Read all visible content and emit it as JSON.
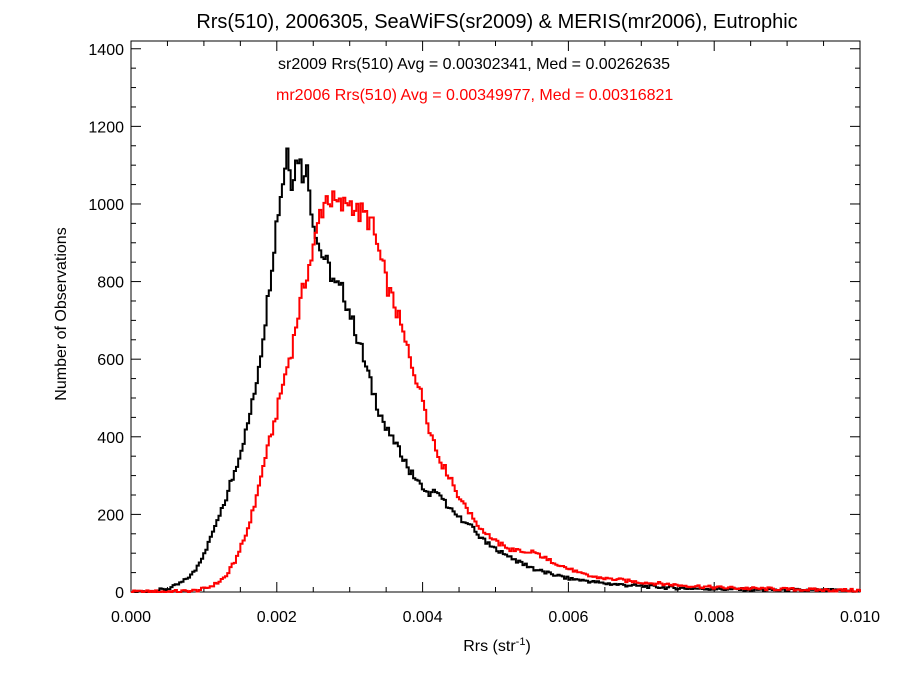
{
  "chart_data": {
    "type": "histogram",
    "title": "Rrs(510), 2006305, SeaWiFS(sr2009) & MERIS(mr2006), Eutrophic",
    "xlabel": "Rrs (str",
    "xlabel_sup": "-1",
    "xlabel_close": ")",
    "ylabel": "Number of Observations",
    "xlim": [
      0.0,
      0.01
    ],
    "ylim": [
      0,
      1420
    ],
    "xticks": [
      0.0,
      0.002,
      0.004,
      0.006,
      0.008,
      0.01
    ],
    "xtick_labels": [
      "0.000",
      "0.002",
      "0.004",
      "0.006",
      "0.008",
      "0.010"
    ],
    "yticks": [
      0,
      200,
      400,
      600,
      800,
      1000,
      1200,
      1400
    ],
    "ytick_labels": [
      "0",
      "200",
      "400",
      "600",
      "800",
      "1000",
      "1200",
      "1400"
    ],
    "grid": false,
    "annotations": [
      {
        "text": "sr2009 Rrs(510) Avg = 0.00302341, Med = 0.00262635",
        "color": "#000000"
      },
      {
        "text": "mr2006 Rrs(510) Avg = 0.00349977, Med = 0.00316821",
        "color": "#ff0000"
      }
    ],
    "series": [
      {
        "color": "#000000",
        "points": [
          [
            0.0,
            0
          ],
          [
            0.0003,
            2
          ],
          [
            0.0005,
            8
          ],
          [
            0.0006,
            15
          ],
          [
            0.0007,
            25
          ],
          [
            0.0008,
            40
          ],
          [
            0.0009,
            60
          ],
          [
            0.001,
            100
          ],
          [
            0.0011,
            140
          ],
          [
            0.0012,
            190
          ],
          [
            0.0013,
            240
          ],
          [
            0.0014,
            300
          ],
          [
            0.0015,
            360
          ],
          [
            0.0016,
            430
          ],
          [
            0.0017,
            520
          ],
          [
            0.0018,
            640
          ],
          [
            0.0019,
            790
          ],
          [
            0.002,
            960
          ],
          [
            0.0021,
            1080
          ],
          [
            0.00215,
            1150
          ],
          [
            0.0022,
            1060
          ],
          [
            0.0023,
            1130
          ],
          [
            0.00235,
            1070
          ],
          [
            0.0024,
            1110
          ],
          [
            0.0025,
            960
          ],
          [
            0.0026,
            880
          ],
          [
            0.0027,
            840
          ],
          [
            0.0028,
            790
          ],
          [
            0.0029,
            780
          ],
          [
            0.003,
            720
          ],
          [
            0.0031,
            660
          ],
          [
            0.0032,
            600
          ],
          [
            0.0033,
            530
          ],
          [
            0.0034,
            470
          ],
          [
            0.0035,
            420
          ],
          [
            0.0036,
            390
          ],
          [
            0.0037,
            360
          ],
          [
            0.0038,
            320
          ],
          [
            0.0039,
            290
          ],
          [
            0.004,
            270
          ],
          [
            0.0041,
            250
          ],
          [
            0.0042,
            260
          ],
          [
            0.0043,
            230
          ],
          [
            0.0044,
            210
          ],
          [
            0.0045,
            190
          ],
          [
            0.0046,
            180
          ],
          [
            0.0047,
            160
          ],
          [
            0.0048,
            140
          ],
          [
            0.005,
            110
          ],
          [
            0.0052,
            90
          ],
          [
            0.0054,
            70
          ],
          [
            0.0056,
            55
          ],
          [
            0.0058,
            45
          ],
          [
            0.006,
            35
          ],
          [
            0.0065,
            22
          ],
          [
            0.007,
            15
          ],
          [
            0.0075,
            10
          ],
          [
            0.008,
            8
          ],
          [
            0.0085,
            6
          ],
          [
            0.009,
            5
          ],
          [
            0.0095,
            4
          ],
          [
            0.01,
            3
          ]
        ]
      },
      {
        "color": "#ff0000",
        "points": [
          [
            0.0,
            0
          ],
          [
            0.0008,
            2
          ],
          [
            0.0009,
            4
          ],
          [
            0.001,
            8
          ],
          [
            0.0011,
            15
          ],
          [
            0.0012,
            25
          ],
          [
            0.0013,
            40
          ],
          [
            0.0014,
            70
          ],
          [
            0.0015,
            110
          ],
          [
            0.0016,
            160
          ],
          [
            0.0017,
            230
          ],
          [
            0.0018,
            310
          ],
          [
            0.0019,
            390
          ],
          [
            0.002,
            460
          ],
          [
            0.0021,
            550
          ],
          [
            0.0022,
            620
          ],
          [
            0.0023,
            720
          ],
          [
            0.0024,
            810
          ],
          [
            0.0025,
            880
          ],
          [
            0.0026,
            980
          ],
          [
            0.0027,
            1020
          ],
          [
            0.0028,
            1000
          ],
          [
            0.0029,
            990
          ],
          [
            0.003,
            1010
          ],
          [
            0.0031,
            980
          ],
          [
            0.0032,
            970
          ],
          [
            0.0033,
            950
          ],
          [
            0.0034,
            880
          ],
          [
            0.0035,
            800
          ],
          [
            0.0036,
            750
          ],
          [
            0.0037,
            690
          ],
          [
            0.0038,
            620
          ],
          [
            0.0039,
            560
          ],
          [
            0.004,
            500
          ],
          [
            0.0041,
            420
          ],
          [
            0.0042,
            360
          ],
          [
            0.0043,
            320
          ],
          [
            0.0044,
            290
          ],
          [
            0.0045,
            240
          ],
          [
            0.0046,
            220
          ],
          [
            0.0047,
            190
          ],
          [
            0.0048,
            160
          ],
          [
            0.0049,
            150
          ],
          [
            0.005,
            130
          ],
          [
            0.0052,
            110
          ],
          [
            0.0054,
            100
          ],
          [
            0.0055,
            105
          ],
          [
            0.0056,
            95
          ],
          [
            0.0058,
            75
          ],
          [
            0.006,
            60
          ],
          [
            0.0062,
            45
          ],
          [
            0.0065,
            35
          ],
          [
            0.007,
            25
          ],
          [
            0.0075,
            18
          ],
          [
            0.008,
            12
          ],
          [
            0.0085,
            9
          ],
          [
            0.009,
            7
          ],
          [
            0.0095,
            5
          ],
          [
            0.01,
            4
          ]
        ]
      }
    ]
  }
}
